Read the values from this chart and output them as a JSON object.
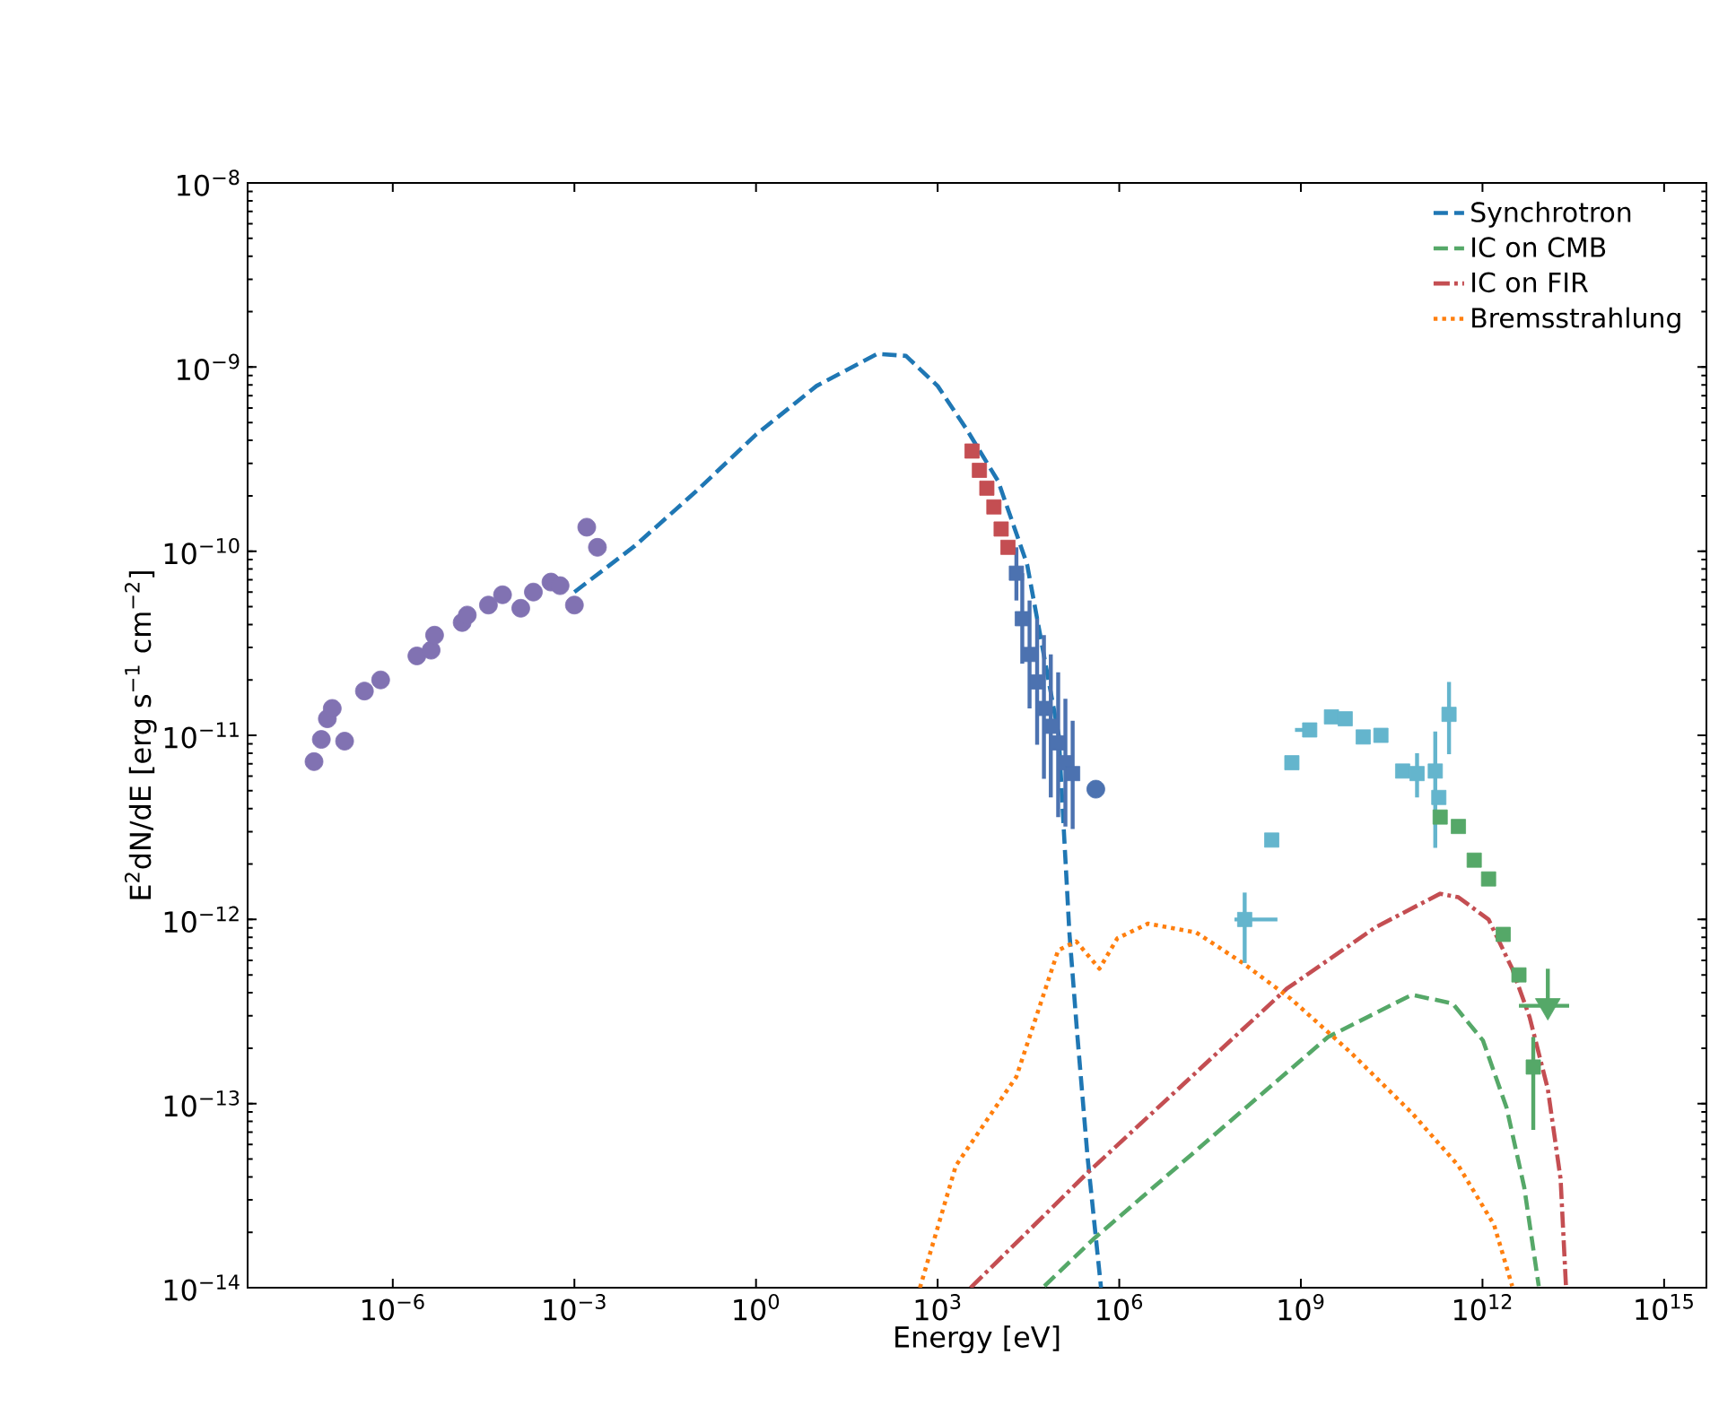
{
  "chart_data": {
    "type": "line",
    "xlabel": "Energy [eV]",
    "ylabel": "E$^{2}$dN/dE [erg s$^{−1}$ cm$^{−2}$]",
    "log": "xy",
    "grid": false,
    "legend": "top right",
    "xlim": [
      4e-09,
      5000000000000000.0
    ],
    "ylim": [
      1e-14,
      1e-08
    ],
    "xticks": [
      {
        "value": 1e-06,
        "label": "10$^{−6}$"
      },
      {
        "value": 0.001,
        "label": "10$^{−3}$"
      },
      {
        "value": 1,
        "label": "10$^{0}$"
      },
      {
        "value": 1000.0,
        "label": "10$^{3}$"
      },
      {
        "value": 1000000.0,
        "label": "10$^{6}$"
      },
      {
        "value": 1000000000.0,
        "label": "10$^{9}$"
      },
      {
        "value": 1000000000000.0,
        "label": "10$^{12}$"
      },
      {
        "value": 1000000000000000.0,
        "label": "10$^{15}$"
      }
    ],
    "yticks": [
      {
        "value": 1e-14,
        "label": "10$^{−14}$"
      },
      {
        "value": 1e-13,
        "label": "10$^{−13}$"
      },
      {
        "value": 1e-12,
        "label": "10$^{−12}$"
      },
      {
        "value": 1e-11,
        "label": "10$^{−11}$"
      },
      {
        "value": 1e-10,
        "label": "10$^{−10}$"
      },
      {
        "value": 1e-09,
        "label": "10$^{−9}$"
      },
      {
        "value": 1e-08,
        "label": "10$^{−8}$"
      }
    ],
    "series": [
      {
        "name": "Synchrotron",
        "color": "#1f77b4",
        "line_style": "dashed",
        "x": [
          0.001,
          0.01,
          0.1,
          1,
          10,
          100,
          300,
          1000.0,
          3000.0,
          10000.0,
          30000.0,
          100000.0,
          150000.0,
          200000.0,
          300000.0,
          500000.0
        ],
        "values": [
          6e-11,
          1.07e-10,
          2.1e-10,
          4.3e-10,
          7.9e-10,
          1.18e-09,
          1.15e-09,
          7.9e-10,
          4.6e-10,
          2.4e-10,
          8.5e-11,
          1e-11,
          8.5e-13,
          2.5e-13,
          5.1e-14,
          1e-14
        ]
      },
      {
        "name": "IC on CMB",
        "color": "#55a868",
        "line_style": "dashed",
        "x": [
          58000.0,
          390000.0,
          2800000000.0,
          68000000000.0,
          320000000000.0,
          1020000000000.0,
          2500000000000.0,
          4900000000000.0,
          8500000000000.0
        ],
        "values": [
          1.02e-14,
          1.86e-14,
          2.3e-13,
          3.9e-13,
          3.5e-13,
          2.2e-13,
          9.5e-14,
          3.5e-14,
          1.02e-14
        ]
      },
      {
        "name": "IC on FIR",
        "color": "#c44e52",
        "line_style": "dashdot",
        "x": [
          3500.0,
          320000.0,
          580000000.0,
          17400000000.0,
          200000000000.0,
          400000000000.0,
          1260000000000.0,
          3100000000000.0,
          6000000000000.0,
          12000000000000.0,
          19500000000000.0,
          24000000000000.0
        ],
        "values": [
          1e-14,
          4.3e-14,
          4.2e-13,
          9.1e-13,
          1.38e-12,
          1.32e-12,
          1e-12,
          5.4e-13,
          2.95e-13,
          1.2e-13,
          3.9e-14,
          1e-14
        ]
      },
      {
        "name": "Bremsstrahlung",
        "color": "#ff7f0e",
        "line_style": "dotted",
        "x": [
          510.0,
          2000.0,
          20000.0,
          98000.0,
          195000.0,
          470000.0,
          930000.0,
          3000000.0,
          18600000.0,
          110000000.0,
          690000000.0,
          6600000000.0,
          68000000000.0,
          400000000000.0,
          1550000000000.0,
          3100000000000.0
        ],
        "values": [
          1e-14,
          4.6e-14,
          1.4e-13,
          6.8e-13,
          7.6e-13,
          5.4e-13,
          7.9e-13,
          9.5e-13,
          8.5e-13,
          5.8e-13,
          3.7e-13,
          1.9e-13,
          8.9e-14,
          4.6e-14,
          2.2e-14,
          1.02e-14
        ]
      },
      {
        "type": "scatter",
        "color": "#8172b2",
        "marker": "circle",
        "x": [
          5e-08,
          6.6e-08,
          1.6e-07,
          8.3e-08,
          1e-07,
          3.4e-07,
          6.3e-07,
          2.5e-06,
          4.3e-06,
          4.9e-06,
          1.4e-05,
          1.7e-05,
          3.8e-05,
          6.5e-05,
          0.00021,
          0.00041,
          0.00058
        ],
        "values": [
          7.2e-12,
          9.5e-12,
          9.3e-12,
          1.23e-11,
          1.4e-11,
          1.74e-11,
          2e-11,
          2.7e-11,
          2.9e-11,
          3.5e-11,
          4.1e-11,
          4.5e-11,
          5.1e-11,
          5.8e-11,
          6e-11,
          6.8e-11,
          6.5e-11
        ]
      },
      {
        "type": "scatter",
        "color": "#8172b2",
        "marker": "circle",
        "x": [
          0.00013,
          0.001,
          0.0016,
          0.0024
        ],
        "values": [
          4.9e-11,
          5.1e-11,
          1.35e-10,
          1.05e-10
        ]
      },
      {
        "type": "scatter",
        "color": "#c44e52",
        "marker": "square",
        "x": [
          3700.0,
          4900.0,
          6500.0,
          8500.0,
          11200.0,
          14500.0
        ],
        "values": [
          3.5e-10,
          2.75e-10,
          2.2e-10,
          1.74e-10,
          1.32e-10,
          1.05e-10
        ]
      },
      {
        "type": "scatter",
        "color": "#4c72b0",
        "marker": "square",
        "x": [
          20000.0,
          25000.0,
          33000.0,
          44000.0,
          57000.0,
          74000.0,
          98000.0,
          129000.0,
          170000.0
        ],
        "values": [
          7.6e-11,
          4.3e-11,
          2.75e-11,
          1.95e-11,
          1.4e-11,
          1.12e-11,
          9.1e-12,
          7.1e-12,
          6.2e-12
        ],
        "errors": [
          [
            5.4e-11,
            1.05e-10
          ],
          [
            2.45e-11,
            7.6e-11
          ],
          [
            1.4e-11,
            5.4e-11
          ],
          [
            8.9e-12,
            4.3e-11
          ],
          [
            5.8e-12,
            3.5e-11
          ],
          [
            4.6e-12,
            2.75e-11
          ],
          [
            3.6e-12,
            2.2e-11
          ],
          [
            3.2e-12,
            1.58e-11
          ],
          [
            3.1e-12,
            1.2e-11
          ]
        ]
      },
      {
        "type": "scatter",
        "color": "#4c72b0",
        "marker": "circle",
        "x": [
          410000.0
        ],
        "values": [
          5.1e-12
        ]
      },
      {
        "type": "scatter",
        "color": "#64b5cd",
        "marker": "square",
        "x": [
          118000000.0,
          330000000.0,
          710000000.0,
          1400000000.0,
          3200000000.0,
          5400000000.0,
          10700000000.0,
          21000000000.0,
          48000000000.0,
          83000000000.0,
          166000000000.0,
          190000000000.0,
          280000000000.0
        ],
        "values": [
          1e-12,
          2.7e-12,
          7.1e-12,
          1.07e-11,
          1.26e-11,
          1.23e-11,
          9.8e-12,
          1e-11,
          6.4e-12,
          6.2e-12,
          6.4e-12,
          4.6e-12,
          1.3e-11
        ],
        "errors": [
          [
            5.8e-13,
            1.4e-12
          ],
          null,
          null,
          null,
          null,
          null,
          null,
          null,
          null,
          [
            4.6e-12,
            8e-12
          ],
          [
            2.45e-12,
            1.05e-11
          ],
          null,
          [
            7.9e-12,
            1.95e-11
          ]
        ],
        "xerrors": [
          [
            80000000.0,
            410000000.0
          ],
          null,
          null,
          [
            800000000.0,
            1400000000.0
          ],
          null,
          null,
          null,
          null,
          null,
          null,
          null,
          null,
          null
        ]
      },
      {
        "type": "scatter",
        "color": "#55a868",
        "marker": "square",
        "x": [
          200000000000.0,
          400000000000.0,
          730000000000.0,
          1260000000000.0,
          2200000000000.0,
          4000000000000.0,
          6900000000000.0
        ],
        "values": [
          3.6e-12,
          3.2e-12,
          2.1e-12,
          1.66e-12,
          8.3e-13,
          5e-13,
          1.58e-13
        ],
        "errors": [
          null,
          null,
          null,
          null,
          null,
          null,
          [
            7.2e-14,
            2.3e-13
          ]
        ]
      },
      {
        "type": "scatter",
        "color": "#55a868",
        "marker": "triangle_down",
        "x": [
          12000000000000.0
        ],
        "values": [
          3.4e-13
        ],
        "errors": [
          [
            3.4e-13,
            5.4e-13
          ]
        ],
        "xerrors": [
          [
            4000000000000.0,
            27000000000000.0
          ]
        ]
      }
    ]
  }
}
